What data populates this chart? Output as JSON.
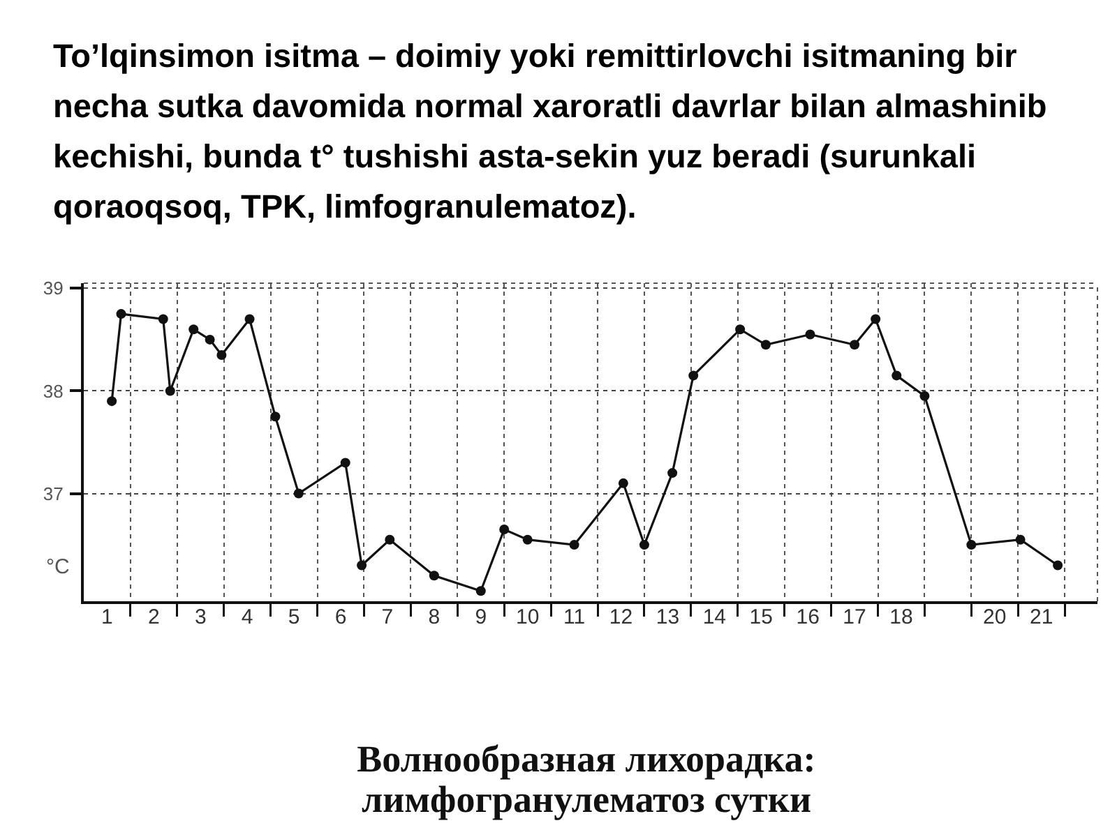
{
  "chart_data": {
    "type": "line",
    "title": "To’lqinsimon isitma – doimiy yoki remittirlovchi isitmaning bir necha sutka davomida normal xaroratli davrlar bilan almashinib kechishi, bunda t° tushishi asta-sekin yuz beradi (surunkali qoraoqsoq, TPK, limfogranulematoz).",
    "ylabel": "°C",
    "annotations": [
      "Волнообразная лихорадка:\nлимфогранулематоз сутки"
    ],
    "x": [
      0.6,
      0.8,
      1.7,
      1.85,
      2.35,
      2.7,
      2.95,
      3.55,
      4.1,
      4.6,
      5.6,
      5.95,
      6.55,
      7.5,
      8.5,
      9.0,
      9.5,
      10.5,
      11.55,
      12.0,
      12.6,
      13.05,
      14.05,
      14.6,
      15.55,
      16.5,
      16.95,
      17.4,
      18.0,
      19.0,
      20.05,
      20.85
    ],
    "series": [
      {
        "color": "#111111",
        "values": [
          37.9,
          38.75,
          38.7,
          38.0,
          38.6,
          38.5,
          38.35,
          38.7,
          37.75,
          37.0,
          37.3,
          36.3,
          36.55,
          36.2,
          36.05,
          36.65,
          36.55,
          36.5,
          37.1,
          36.5,
          37.2,
          38.15,
          38.6,
          38.45,
          38.55,
          38.45,
          38.7,
          38.15,
          37.95,
          36.5,
          36.55,
          36.3
        ]
      }
    ],
    "xlim": [
      0,
      21.7
    ],
    "xticks": [
      {
        "value": 0.5,
        "label": "1"
      },
      {
        "value": 1.5,
        "label": "2"
      },
      {
        "value": 2.5,
        "label": "3"
      },
      {
        "value": 3.5,
        "label": "4"
      },
      {
        "value": 4.5,
        "label": "5"
      },
      {
        "value": 5.5,
        "label": "6"
      },
      {
        "value": 6.5,
        "label": "7"
      },
      {
        "value": 7.5,
        "label": "8"
      },
      {
        "value": 8.5,
        "label": "9"
      },
      {
        "value": 9.5,
        "label": "10"
      },
      {
        "value": 10.5,
        "label": "11"
      },
      {
        "value": 11.5,
        "label": "12"
      },
      {
        "value": 12.5,
        "label": "13"
      },
      {
        "value": 13.5,
        "label": "14"
      },
      {
        "value": 14.5,
        "label": "15"
      },
      {
        "value": 15.5,
        "label": "16"
      },
      {
        "value": 16.5,
        "label": "17"
      },
      {
        "value": 17.5,
        "label": "18"
      },
      {
        "value": 19.5,
        "label": "20"
      },
      {
        "value": 20.5,
        "label": "21"
      },
      {
        "value": 1,
        "label": null
      },
      {
        "value": 2,
        "label": null
      },
      {
        "value": 3,
        "label": null
      },
      {
        "value": 4,
        "label": null
      },
      {
        "value": 5,
        "label": null
      },
      {
        "value": 6,
        "label": null
      },
      {
        "value": 7,
        "label": null
      },
      {
        "value": 8,
        "label": null
      },
      {
        "value": 9,
        "label": null
      },
      {
        "value": 10,
        "label": null
      },
      {
        "value": 11,
        "label": null
      },
      {
        "value": 12,
        "label": null
      },
      {
        "value": 13,
        "label": null
      },
      {
        "value": 14,
        "label": null
      },
      {
        "value": 15,
        "label": null
      },
      {
        "value": 16,
        "label": null
      },
      {
        "value": 17,
        "label": null
      },
      {
        "value": 18,
        "label": null
      },
      {
        "value": 19,
        "label": null
      },
      {
        "value": 20,
        "label": null
      },
      {
        "value": 21,
        "label": null
      }
    ],
    "ylim": [
      35.95,
      39.05
    ],
    "yticks": [
      37,
      38,
      39
    ],
    "grid": true,
    "marker": "circle",
    "line_style": "solid"
  }
}
